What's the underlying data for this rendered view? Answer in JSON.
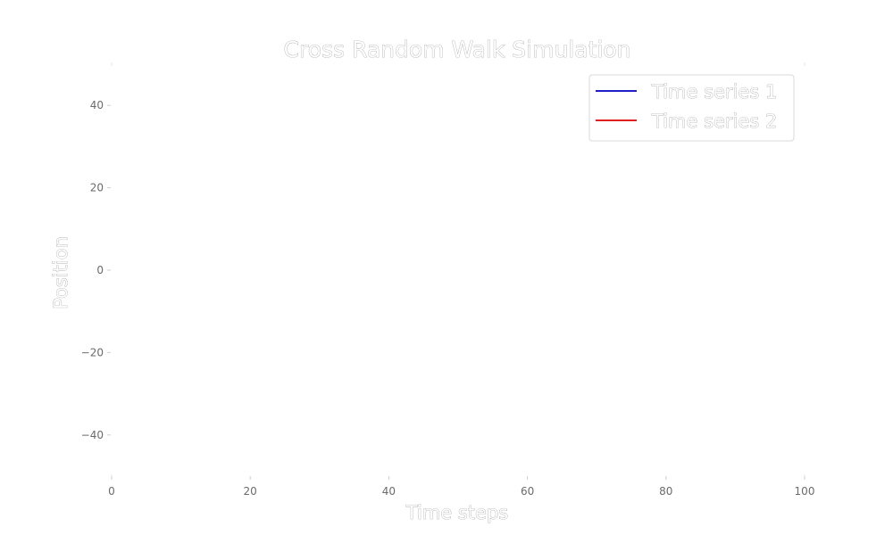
{
  "chart_data": {
    "type": "line",
    "title": "Cross Random Walk Simulation",
    "xlabel": "Time steps",
    "ylabel": "Position",
    "xlim": [
      0,
      100
    ],
    "ylim": [
      -50,
      50
    ],
    "xticks": [
      0,
      20,
      40,
      60,
      80,
      100
    ],
    "yticks": [
      40,
      20,
      0,
      -20,
      -40
    ],
    "grid": false,
    "legend_position": "top-right",
    "series": [
      {
        "name": "Time series 1",
        "color": "#1f1fc8",
        "x": [],
        "y": []
      },
      {
        "name": "Time series 2",
        "color": "#e02020",
        "x": [],
        "y": []
      }
    ]
  }
}
